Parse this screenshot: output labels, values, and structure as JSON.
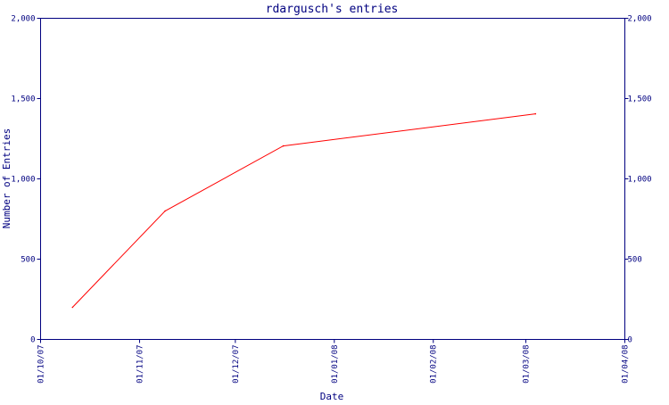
{
  "chart_data": {
    "type": "line",
    "title": "rdargusch's entries",
    "xlabel": "Date",
    "ylabel": "Number of Entries",
    "x_axis": {
      "type": "date",
      "range": [
        "2007-10-01",
        "2008-04-01"
      ],
      "ticks": [
        {
          "date": "2007-10-01",
          "label": "01/10/07"
        },
        {
          "date": "2007-11-01",
          "label": "01/11/07"
        },
        {
          "date": "2007-12-01",
          "label": "01/12/07"
        },
        {
          "date": "2008-01-01",
          "label": "01/01/08"
        },
        {
          "date": "2008-02-01",
          "label": "01/02/08"
        },
        {
          "date": "2008-03-01",
          "label": "01/03/08"
        },
        {
          "date": "2008-04-01",
          "label": "01/04/08"
        }
      ]
    },
    "y_axis": {
      "range": [
        0,
        2000
      ],
      "ticks": [
        {
          "value": 0,
          "label": "0"
        },
        {
          "value": 500,
          "label": "500"
        },
        {
          "value": 1000,
          "label": "1,000"
        },
        {
          "value": 1500,
          "label": "1,500"
        },
        {
          "value": 2000,
          "label": "2,000"
        }
      ],
      "mirrored_right": true
    },
    "grid": false,
    "series": [
      {
        "color": "#ff0000",
        "points": [
          {
            "x": "2007-10-11",
            "y": 200
          },
          {
            "x": "2007-11-09",
            "y": 800
          },
          {
            "x": "2007-12-16",
            "y": 1205
          },
          {
            "x": "2008-03-04",
            "y": 1405
          }
        ]
      }
    ]
  },
  "colors": {
    "axis": "#000080",
    "line": "#ff0000",
    "background": "#ffffff"
  }
}
